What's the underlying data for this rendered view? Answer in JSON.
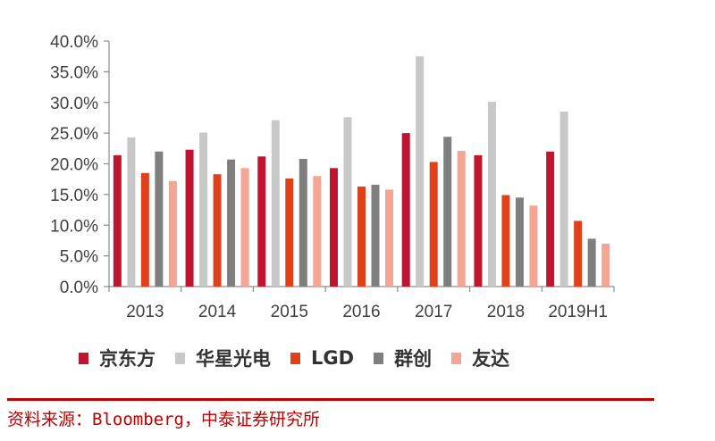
{
  "chart_data": {
    "type": "bar",
    "categories": [
      "2013",
      "2014",
      "2015",
      "2016",
      "2017",
      "2018",
      "2019H1"
    ],
    "ylim": [
      0,
      40
    ],
    "yticks": [
      "0.0%",
      "5.0%",
      "10.0%",
      "15.0%",
      "20.0%",
      "25.0%",
      "30.0%",
      "35.0%",
      "40.0%"
    ],
    "grid": false,
    "legend_position": "bottom",
    "series": [
      {
        "name": "京东方",
        "color": "#c0152f",
        "values": [
          21.4,
          22.3,
          21.2,
          19.3,
          25.0,
          21.4,
          22.0
        ]
      },
      {
        "name": "华星光电",
        "color": "#c8c8c8",
        "values": [
          24.3,
          25.1,
          27.1,
          27.6,
          37.5,
          30.1,
          28.5
        ]
      },
      {
        "name": "LGD",
        "color": "#e0401a",
        "values": [
          18.5,
          18.3,
          17.6,
          16.3,
          20.3,
          14.9,
          10.7
        ]
      },
      {
        "name": "群创",
        "color": "#7f7f7f",
        "values": [
          22.0,
          20.7,
          20.8,
          16.6,
          24.4,
          14.5,
          7.8
        ]
      },
      {
        "name": "友达",
        "color": "#f4a594",
        "values": [
          17.2,
          19.3,
          18.0,
          15.8,
          22.1,
          13.2,
          7.0
        ]
      }
    ]
  },
  "footer": {
    "source": "资料来源：Bloomberg，中泰证券研究所",
    "divider_color": "#c00000"
  }
}
